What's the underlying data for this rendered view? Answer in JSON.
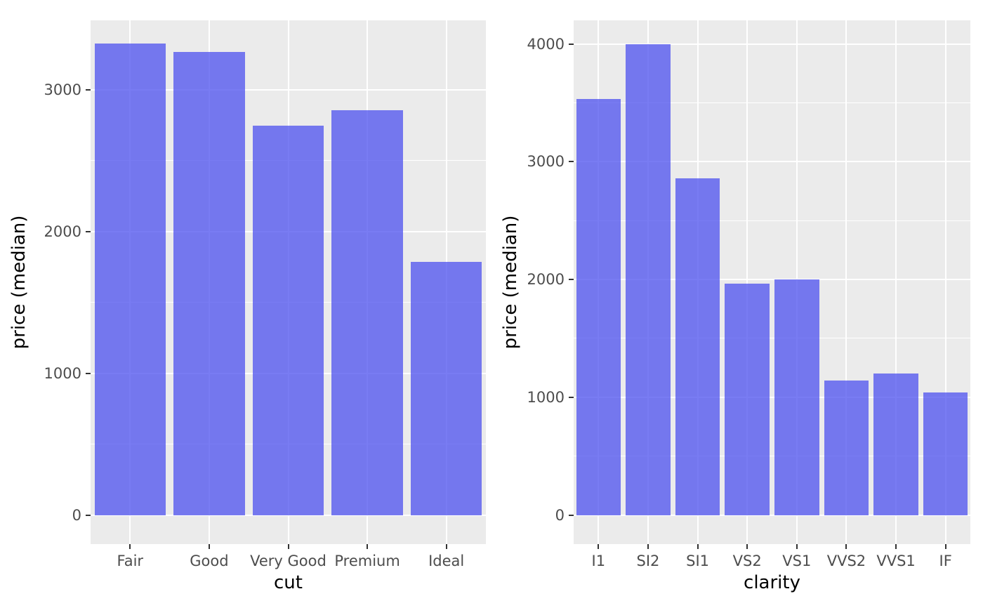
{
  "figure": {
    "background": "#FFFFFF",
    "panel_background": "#EBEBEB",
    "grid_color": "#FFFFFF",
    "bar_fill": "rgba(76,80,239,0.75)",
    "bar_fill_apparent": "#7477EE",
    "tick_text_color": "#4D4D4D",
    "axis_title_color": "#000000"
  },
  "chart_data": [
    {
      "type": "bar",
      "title": "",
      "xlabel": "cut",
      "ylabel": "price (median)",
      "categories": [
        "Fair",
        "Good",
        "Very Good",
        "Premium",
        "Ideal"
      ],
      "values": [
        3325,
        3265,
        2745,
        2855,
        1785
      ],
      "ylim": [
        0,
        3490
      ],
      "yticks": [
        0,
        1000,
        2000,
        3000
      ],
      "yticks_minor": [
        500,
        1500,
        2500
      ],
      "grid": "white major and minor horizontal lines, white vertical line per category, on grey panel",
      "legend": "none"
    },
    {
      "type": "bar",
      "title": "",
      "xlabel": "clarity",
      "ylabel": "price (median)",
      "categories": [
        "I1",
        "SI2",
        "SI1",
        "VS2",
        "VS1",
        "VVS2",
        "VVS1",
        "IF"
      ],
      "values": [
        3535,
        3995,
        2860,
        1965,
        2000,
        1140,
        1200,
        1040
      ],
      "ylim": [
        0,
        4200
      ],
      "yticks": [
        0,
        1000,
        2000,
        3000,
        4000
      ],
      "yticks_minor": [
        500,
        1500,
        2500,
        3500
      ],
      "grid": "white major and minor horizontal lines, white vertical line per category, on grey panel",
      "legend": "none"
    }
  ]
}
